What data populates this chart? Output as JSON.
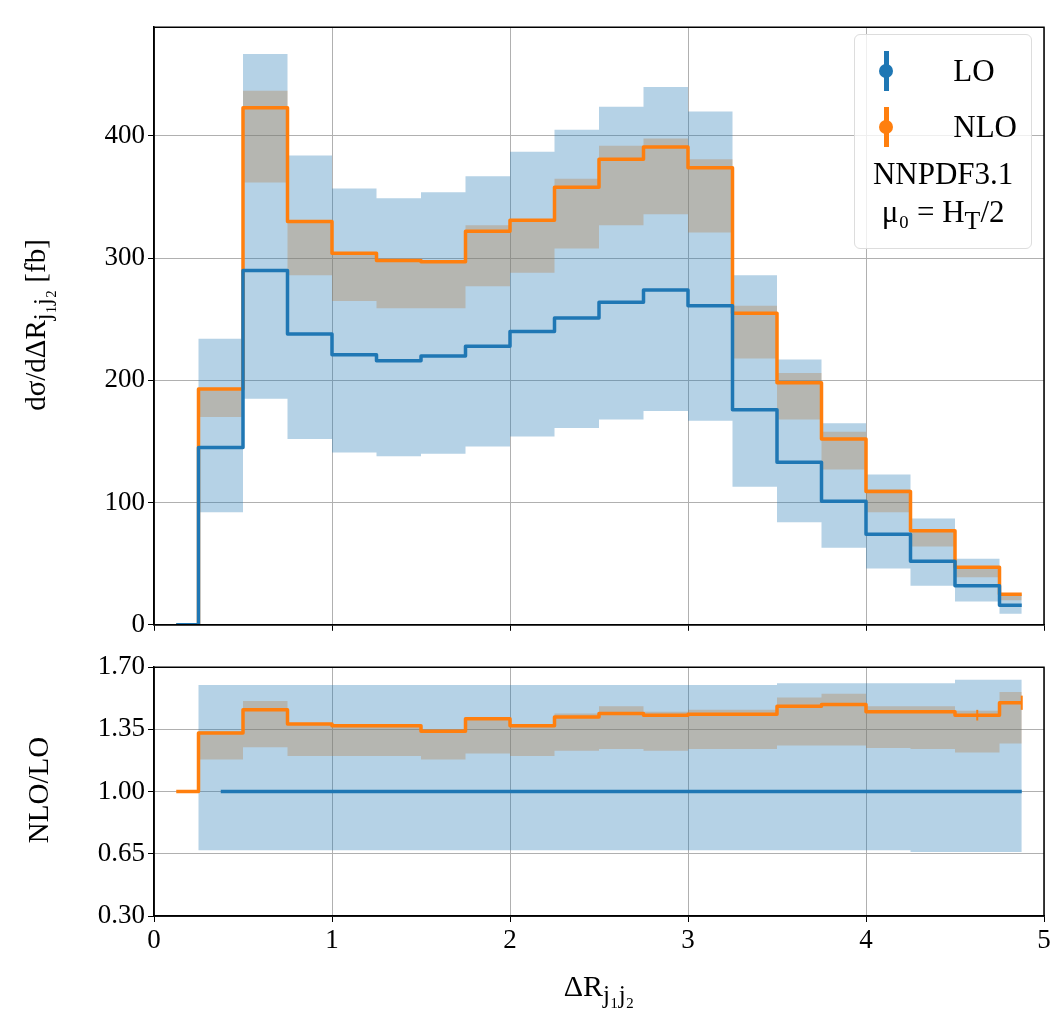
{
  "chart_data": [
    {
      "type": "step",
      "ylabel": "dσ/dΔR$_{j₁j₂}$ [fb]",
      "x": [
        0.125,
        0.375,
        0.625,
        0.875,
        1.125,
        1.375,
        1.625,
        1.875,
        2.125,
        2.375,
        2.625,
        2.875,
        3.125,
        3.375,
        3.625,
        3.875,
        4.125,
        4.375,
        4.625,
        4.875
      ],
      "series": [
        {
          "name": "LO",
          "color": "#1f77b4",
          "values": [
            0,
            145,
            290,
            238,
            221,
            216,
            220,
            228,
            240,
            251,
            264,
            274,
            261,
            176,
            133,
            101,
            74,
            52,
            32,
            16
          ],
          "lower": [
            0,
            92,
            185,
            152,
            141,
            138,
            140,
            146,
            154,
            161,
            168,
            175,
            167,
            113,
            84,
            63,
            46,
            32,
            19,
            9
          ],
          "upper": [
            0,
            234,
            467,
            384,
            357,
            349,
            354,
            367,
            387,
            405,
            424,
            440,
            420,
            286,
            217,
            165,
            123,
            87,
            54,
            25
          ]
        },
        {
          "name": "NLO",
          "color": "#ff7f0e",
          "values": [
            0,
            193,
            423,
            330,
            304,
            298,
            297,
            322,
            331,
            358,
            381,
            391,
            374,
            255,
            198,
            152,
            109,
            77,
            47,
            25
          ],
          "lower": [
            0,
            170,
            362,
            286,
            265,
            259,
            259,
            277,
            288,
            308,
            327,
            336,
            321,
            218,
            168,
            127,
            92,
            64,
            39,
            20
          ],
          "upper": [
            0,
            192,
            437,
            330,
            304,
            298,
            298,
            327,
            331,
            365,
            392,
            398,
            381,
            261,
            206,
            158,
            111,
            77,
            48,
            25
          ]
        }
      ],
      "xlim": [
        0,
        5
      ],
      "xticks": [
        0,
        1,
        2,
        3,
        4,
        5
      ],
      "ylim": [
        0,
        489
      ],
      "yticks": [
        0,
        100,
        200,
        300,
        400
      ],
      "tick_labels": "y",
      "grid": true,
      "legend": "top right",
      "annotations": [
        "NNPDF3.1",
        "μ₀ = H$_{T}$/2"
      ]
    },
    {
      "type": "step",
      "xlabel": "ΔR$_{j₁j₂}$",
      "ylabel": "NLO/LO",
      "x": [
        0.125,
        0.375,
        0.625,
        0.875,
        1.125,
        1.375,
        1.625,
        1.875,
        2.125,
        2.375,
        2.625,
        2.875,
        3.125,
        3.375,
        3.625,
        3.875,
        4.125,
        4.375,
        4.625,
        4.875
      ],
      "series": [
        {
          "color": "#1f77b4",
          "values": [
            null,
            1,
            1,
            1,
            1,
            1,
            1,
            1,
            1,
            1,
            1,
            1,
            1,
            1,
            1,
            1,
            1,
            1,
            1,
            1
          ],
          "lower": [
            1,
            0.67,
            0.67,
            0.67,
            0.67,
            0.67,
            0.67,
            0.67,
            0.67,
            0.67,
            0.67,
            0.67,
            0.67,
            0.67,
            0.67,
            0.67,
            0.67,
            0.66,
            0.66,
            0.66
          ],
          "upper": [
            1,
            1.6,
            1.6,
            1.6,
            1.6,
            1.6,
            1.6,
            1.6,
            1.6,
            1.6,
            1.6,
            1.6,
            1.6,
            1.6,
            1.61,
            1.61,
            1.61,
            1.61,
            1.63,
            1.63
          ]
        },
        {
          "color": "#ff7f0e",
          "values": [
            1,
            1.33,
            1.46,
            1.38,
            1.37,
            1.37,
            1.34,
            1.41,
            1.37,
            1.42,
            1.44,
            1.43,
            1.435,
            1.435,
            1.48,
            1.49,
            1.45,
            1.45,
            1.43,
            1.5
          ],
          "errors": [
            null,
            null,
            null,
            null,
            null,
            null,
            null,
            null,
            null,
            null,
            null,
            null,
            null,
            null,
            null,
            null,
            null,
            null,
            0.03,
            0.04
          ],
          "lower": [
            1,
            1.18,
            1.25,
            1.2,
            1.2,
            1.2,
            1.18,
            1.215,
            1.2,
            1.23,
            1.24,
            1.23,
            1.24,
            1.24,
            1.26,
            1.26,
            1.245,
            1.24,
            1.22,
            1.27
          ],
          "upper": [
            1,
            1.34,
            1.51,
            1.38,
            1.38,
            1.38,
            1.35,
            1.42,
            1.38,
            1.44,
            1.48,
            1.45,
            1.46,
            1.46,
            1.53,
            1.55,
            1.48,
            1.48,
            1.455,
            1.56
          ]
        }
      ],
      "xlim": [
        0,
        5
      ],
      "xticks": [
        0,
        1,
        2,
        3,
        4,
        5
      ],
      "ylim": [
        0.3,
        1.7
      ],
      "yticks": [
        {
          "value": 0.3,
          "label": "0.30"
        },
        {
          "value": 0.65,
          "label": "0.65"
        },
        {
          "value": 1,
          "label": "1.00"
        },
        {
          "value": 1.35,
          "label": "1.35"
        },
        {
          "value": 1.7,
          "label": "1.70"
        }
      ],
      "grid": true
    }
  ]
}
